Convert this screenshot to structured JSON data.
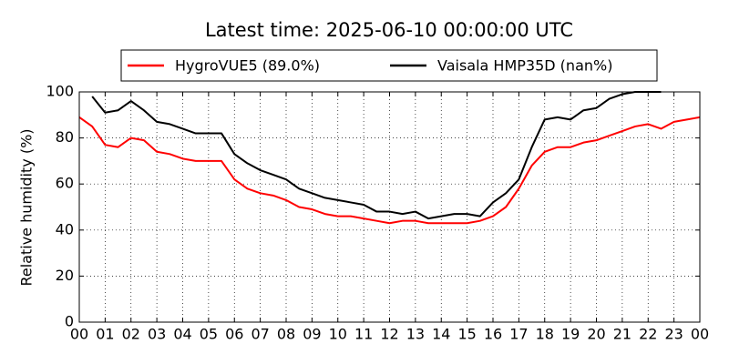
{
  "chart_data": {
    "type": "line",
    "title": "Latest time: 2025-06-10 00:00:00 UTC",
    "y_label": "Relative humidity (%)",
    "x": [
      0,
      0.5,
      1,
      1.5,
      2,
      2.5,
      3,
      3.5,
      4,
      4.5,
      5,
      5.5,
      6,
      6.5,
      7,
      7.5,
      8,
      8.5,
      9,
      9.5,
      10,
      10.5,
      11,
      11.5,
      12,
      12.5,
      13,
      13.5,
      14,
      14.5,
      15,
      15.5,
      16,
      16.5,
      17,
      17.5,
      18,
      18.5,
      19,
      19.5,
      20,
      20.5,
      21,
      21.5,
      22,
      22.5,
      23,
      23.5,
      24
    ],
    "series": [
      {
        "name": "HygroVUE5 (89.0%)",
        "color": "#ff0000",
        "values": [
          89,
          85,
          77,
          76,
          80,
          79,
          74,
          73,
          71,
          70,
          70,
          70,
          62,
          58,
          56,
          55,
          53,
          50,
          49,
          47,
          46,
          46,
          45,
          44,
          43,
          44,
          44,
          43,
          43,
          43,
          43,
          44,
          46,
          50,
          58,
          68,
          74,
          76,
          76,
          78,
          79,
          81,
          83,
          85,
          86,
          84,
          87,
          88,
          89
        ]
      },
      {
        "name": "Vaisala HMP35D (nan%)",
        "color": "#000000",
        "values": [
          null,
          98,
          91,
          92,
          96,
          92,
          87,
          86,
          84,
          82,
          82,
          82,
          73,
          69,
          66,
          64,
          62,
          58,
          56,
          54,
          53,
          52,
          51,
          48,
          48,
          47,
          48,
          45,
          46,
          47,
          47,
          46,
          52,
          56,
          62,
          76,
          88,
          89,
          88,
          92,
          93,
          97,
          99,
          100,
          100,
          100,
          null,
          null,
          null
        ]
      }
    ],
    "xlim": [
      0,
      24
    ],
    "xticks": [
      {
        "value": 0,
        "label": "00"
      },
      {
        "value": 1,
        "label": "01"
      },
      {
        "value": 2,
        "label": "02"
      },
      {
        "value": 3,
        "label": "03"
      },
      {
        "value": 4,
        "label": "04"
      },
      {
        "value": 5,
        "label": "05"
      },
      {
        "value": 6,
        "label": "06"
      },
      {
        "value": 7,
        "label": "07"
      },
      {
        "value": 8,
        "label": "08"
      },
      {
        "value": 9,
        "label": "09"
      },
      {
        "value": 10,
        "label": "10"
      },
      {
        "value": 11,
        "label": "11"
      },
      {
        "value": 12,
        "label": "12"
      },
      {
        "value": 13,
        "label": "13"
      },
      {
        "value": 14,
        "label": "14"
      },
      {
        "value": 15,
        "label": "15"
      },
      {
        "value": 16,
        "label": "16"
      },
      {
        "value": 17,
        "label": "17"
      },
      {
        "value": 18,
        "label": "18"
      },
      {
        "value": 19,
        "label": "19"
      },
      {
        "value": 20,
        "label": "20"
      },
      {
        "value": 21,
        "label": "21"
      },
      {
        "value": 22,
        "label": "22"
      },
      {
        "value": 23,
        "label": "23"
      },
      {
        "value": 24,
        "label": "00"
      }
    ],
    "ylim": [
      0,
      100
    ],
    "yticks": [
      0,
      20,
      40,
      60,
      80,
      100
    ],
    "grid": true,
    "legend": "top"
  }
}
